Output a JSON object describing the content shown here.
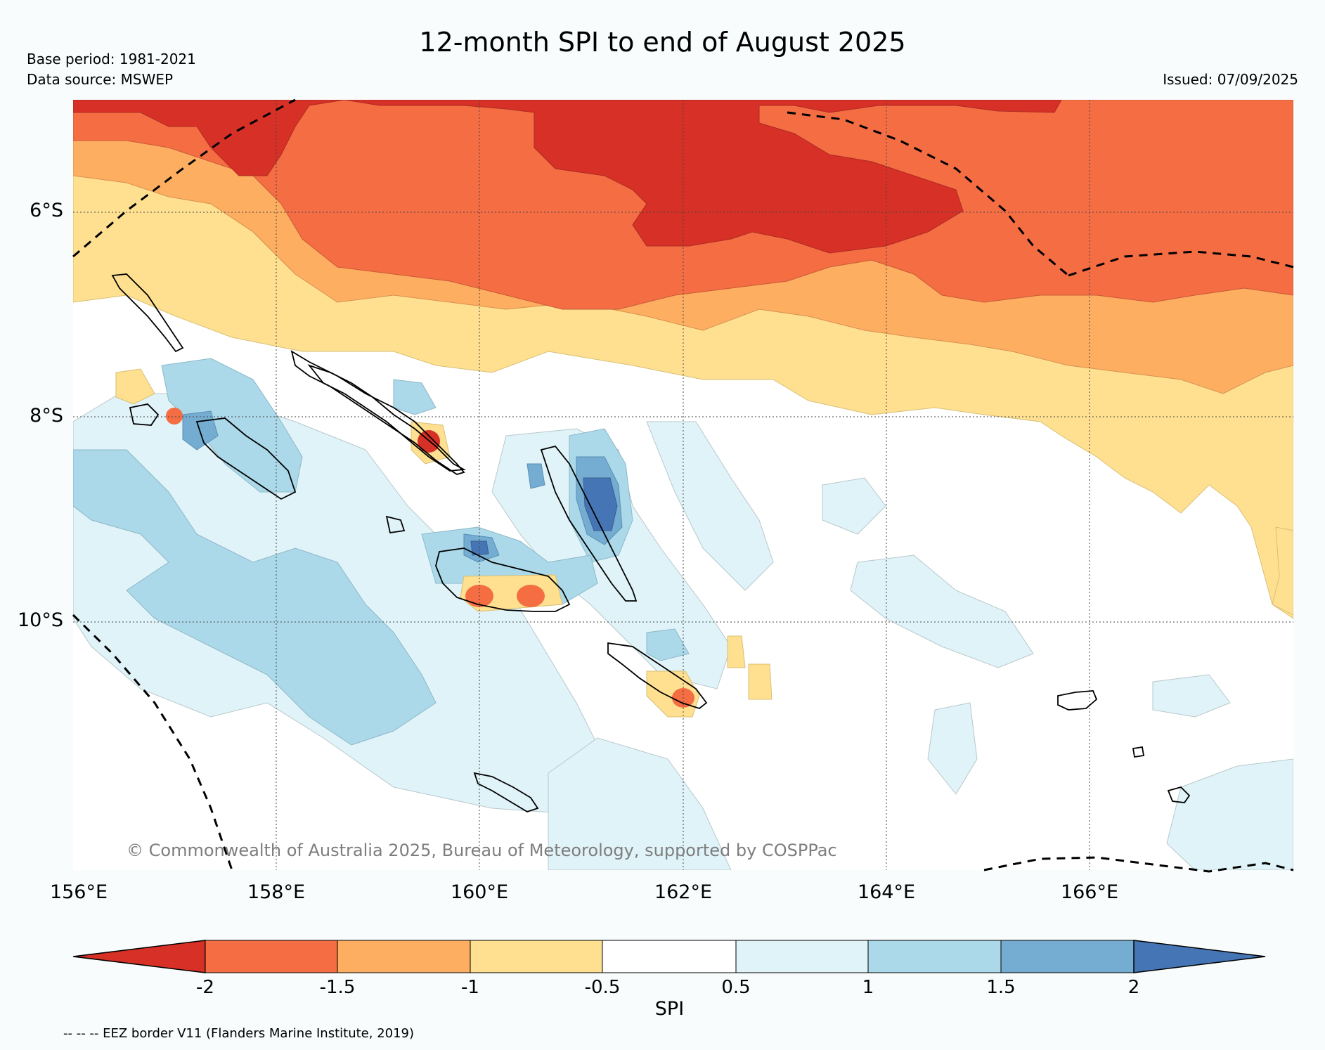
{
  "title": "12-month SPI to end of August 2025",
  "meta": {
    "base_period": "Base period: 1981-2021",
    "data_source": "Data source: MSWEP",
    "issued": "Issued: 07/09/2025"
  },
  "axes": {
    "y_labels": [
      "6°S",
      "8°S",
      "10°S"
    ],
    "x_labels": [
      "156°E",
      "158°E",
      "160°E",
      "162°E",
      "164°E",
      "166°E"
    ]
  },
  "copyright": "© Commonwealth of Australia 2025, Bureau of Meteorology, supported by COSPPac",
  "colorbar": {
    "label": "SPI",
    "ticks": [
      "-2",
      "-1.5",
      "-1",
      "-0.5",
      "0.5",
      "1",
      "1.5",
      "2"
    ],
    "colors": [
      "#d73027",
      "#f46d43",
      "#fdae61",
      "#fee090",
      "#ffffff",
      "#e0f3f8",
      "#abd9e9",
      "#74add1",
      "#4575b4"
    ]
  },
  "legend_note": "-- -- -- EEZ border V11 (Flanders Marine Institute, 2019)"
}
